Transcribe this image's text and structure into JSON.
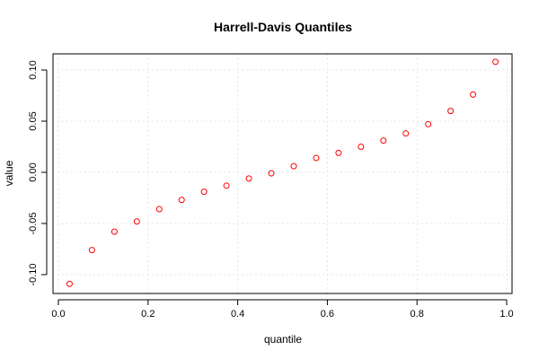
{
  "chart_data": {
    "type": "scatter",
    "title": "Harrell-Davis Quantiles",
    "xlabel": "quantile",
    "ylabel": "value",
    "xlim": [
      0.0,
      1.0
    ],
    "ylim": [
      -0.11,
      0.11
    ],
    "x_ticks": [
      0.0,
      0.2,
      0.4,
      0.6,
      0.8,
      1.0
    ],
    "x_tick_labels": [
      "0.0",
      "0.2",
      "0.4",
      "0.6",
      "0.8",
      "1.0"
    ],
    "y_ticks": [
      -0.1,
      -0.05,
      0.0,
      0.05,
      0.1
    ],
    "y_tick_labels": [
      "-0.10",
      "-0.05",
      "0.00",
      "0.05",
      "0.10"
    ],
    "grid": true,
    "point_color": "#ff0000",
    "x": [
      0.025,
      0.075,
      0.125,
      0.175,
      0.225,
      0.275,
      0.325,
      0.375,
      0.425,
      0.475,
      0.525,
      0.575,
      0.625,
      0.675,
      0.725,
      0.775,
      0.825,
      0.875,
      0.925,
      0.975
    ],
    "y": [
      -0.109,
      -0.076,
      -0.058,
      -0.048,
      -0.036,
      -0.027,
      -0.019,
      -0.013,
      -0.006,
      -0.001,
      0.006,
      0.014,
      0.019,
      0.025,
      0.031,
      0.038,
      0.047,
      0.06,
      0.076,
      0.108
    ]
  }
}
